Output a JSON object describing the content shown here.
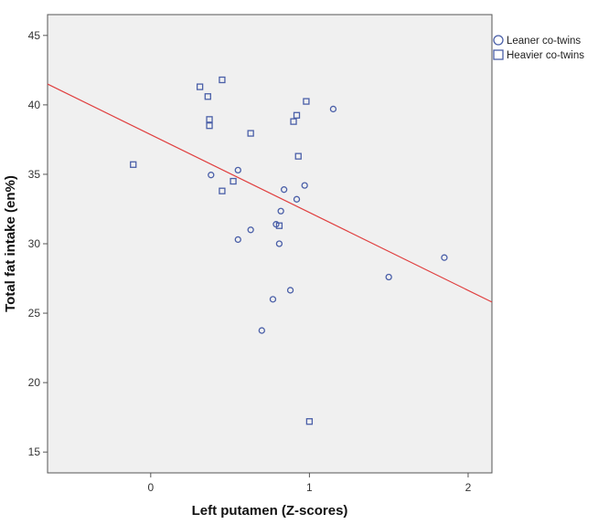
{
  "chart_data": {
    "type": "scatter",
    "title": "",
    "xlabel": "Left putamen (Z-scores)",
    "ylabel": "Total fat intake (en%)",
    "xlim": [
      -0.65,
      2.15
    ],
    "ylim": [
      13.5,
      46.5
    ],
    "xticks": [
      0,
      1,
      2
    ],
    "yticks": [
      15,
      20,
      25,
      30,
      35,
      40,
      45
    ],
    "grid": false,
    "legend": "right-outside-top",
    "plot_background": "#f0f0f0",
    "marker_color": "#4a5fa8",
    "series": [
      {
        "name": "Leaner co-twins",
        "marker": "circle",
        "points": [
          [
            0.38,
            34.95
          ],
          [
            0.55,
            35.3
          ],
          [
            0.55,
            30.3
          ],
          [
            0.63,
            31.0
          ],
          [
            0.7,
            23.75
          ],
          [
            0.77,
            26.0
          ],
          [
            0.81,
            30.0
          ],
          [
            0.82,
            32.35
          ],
          [
            0.84,
            33.9
          ],
          [
            0.88,
            26.65
          ],
          [
            0.92,
            33.2
          ],
          [
            0.97,
            34.2
          ],
          [
            1.15,
            39.7
          ],
          [
            1.5,
            27.6
          ],
          [
            1.85,
            29.0
          ],
          [
            0.79,
            31.4
          ]
        ]
      },
      {
        "name": "Heavier co-twins",
        "marker": "square",
        "points": [
          [
            -0.11,
            35.7
          ],
          [
            0.31,
            41.3
          ],
          [
            0.36,
            40.6
          ],
          [
            0.37,
            38.95
          ],
          [
            0.37,
            38.5
          ],
          [
            0.45,
            41.8
          ],
          [
            0.45,
            33.8
          ],
          [
            0.52,
            34.5
          ],
          [
            0.63,
            37.95
          ],
          [
            0.81,
            31.3
          ],
          [
            0.9,
            38.8
          ],
          [
            0.92,
            39.25
          ],
          [
            0.93,
            36.3
          ],
          [
            0.98,
            40.25
          ],
          [
            1.0,
            17.2
          ]
        ]
      }
    ],
    "fit_line": {
      "color": "#e04040",
      "points": [
        [
          -0.65,
          41.5
        ],
        [
          2.15,
          25.8
        ]
      ]
    }
  }
}
